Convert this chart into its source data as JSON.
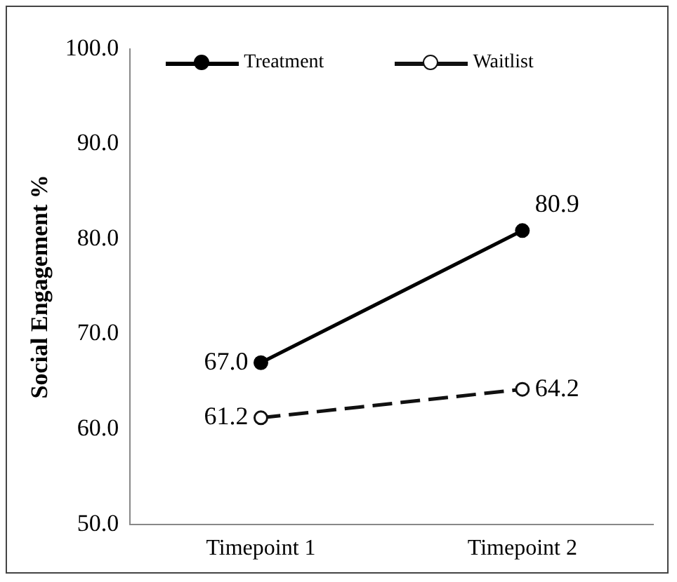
{
  "chart_data": {
    "type": "line",
    "ylabel": "Social Engagement %",
    "categories": [
      "Timepoint 1",
      "Timepoint 2"
    ],
    "series": [
      {
        "name": "Treatment",
        "color": "#000000",
        "values": [
          67.0,
          80.9
        ],
        "value_labels": [
          "67.0",
          "80.9"
        ],
        "line_style": "solid"
      },
      {
        "name": "Waitlist",
        "color": "#111111",
        "values": [
          61.2,
          64.2
        ],
        "value_labels": [
          "61.2",
          "64.2"
        ],
        "line_style": "dashed"
      }
    ],
    "ylim": [
      50,
      100
    ],
    "yticks": [
      {
        "value": 50,
        "label": "50.0"
      },
      {
        "value": 60,
        "label": "60.0"
      },
      {
        "value": 70,
        "label": "70.0"
      },
      {
        "value": 80,
        "label": "80.0"
      },
      {
        "value": 90,
        "label": "90.0"
      },
      {
        "value": 100,
        "label": "100.0"
      }
    ],
    "grid": false,
    "legend": "top",
    "marker": "circle"
  }
}
